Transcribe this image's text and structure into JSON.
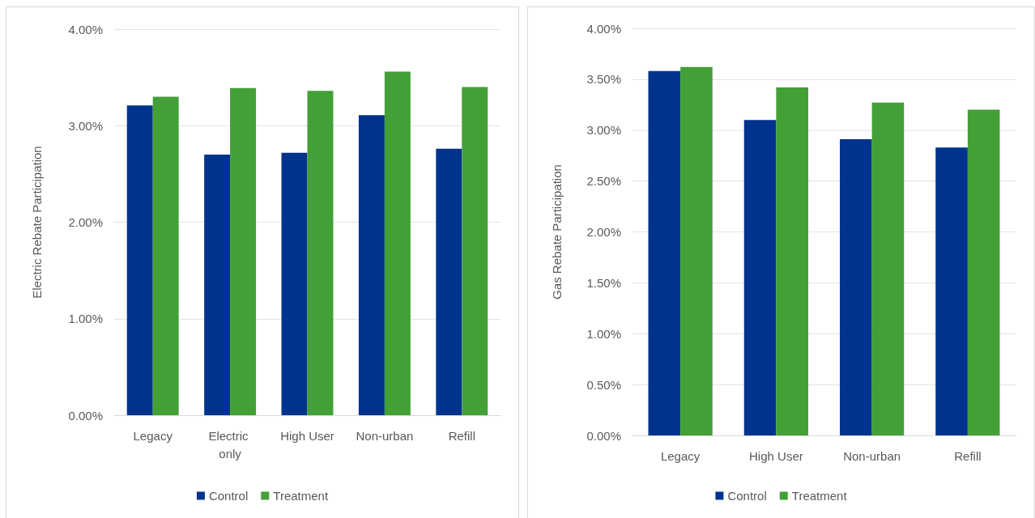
{
  "chart_data": [
    {
      "type": "bar",
      "categories": [
        "Legacy",
        "Electric only",
        "High User",
        "Non-urban",
        "Refill"
      ],
      "series": [
        {
          "name": "Control",
          "color": "#00338d",
          "values": [
            3.21,
            2.7,
            2.72,
            3.11,
            2.76
          ]
        },
        {
          "name": "Treatment",
          "color": "#43a036",
          "values": [
            3.3,
            3.39,
            3.36,
            3.56,
            3.4
          ]
        }
      ],
      "ylabel": "Electric Rebate Participation",
      "ylim": [
        0,
        4
      ],
      "yticks": [
        {
          "value": 0,
          "label": "0.00%"
        },
        {
          "value": 1,
          "label": "1.00%"
        },
        {
          "value": 2,
          "label": "2.00%"
        },
        {
          "value": 3,
          "label": "3.00%"
        },
        {
          "value": 4,
          "label": "4.00%"
        }
      ],
      "grid": "y",
      "legend": "bottom"
    },
    {
      "type": "bar",
      "categories": [
        "Legacy",
        "High User",
        "Non-urban",
        "Refill"
      ],
      "series": [
        {
          "name": "Control",
          "color": "#00338d",
          "values": [
            3.58,
            3.1,
            2.91,
            2.83
          ]
        },
        {
          "name": "Treatment",
          "color": "#43a036",
          "values": [
            3.62,
            3.42,
            3.27,
            3.2
          ]
        }
      ],
      "ylabel": "Gas Rebate Participation",
      "ylim": [
        0,
        4
      ],
      "yticks": [
        {
          "value": 0,
          "label": "0.00%"
        },
        {
          "value": 0.5,
          "label": "0.50%"
        },
        {
          "value": 1,
          "label": "1.00%"
        },
        {
          "value": 1.5,
          "label": "1.50%"
        },
        {
          "value": 2,
          "label": "2.00%"
        },
        {
          "value": 2.5,
          "label": "2.50%"
        },
        {
          "value": 3,
          "label": "3.00%"
        },
        {
          "value": 3.5,
          "label": "3.50%"
        },
        {
          "value": 4,
          "label": "4.00%"
        }
      ],
      "grid": "y",
      "legend": "bottom"
    }
  ]
}
